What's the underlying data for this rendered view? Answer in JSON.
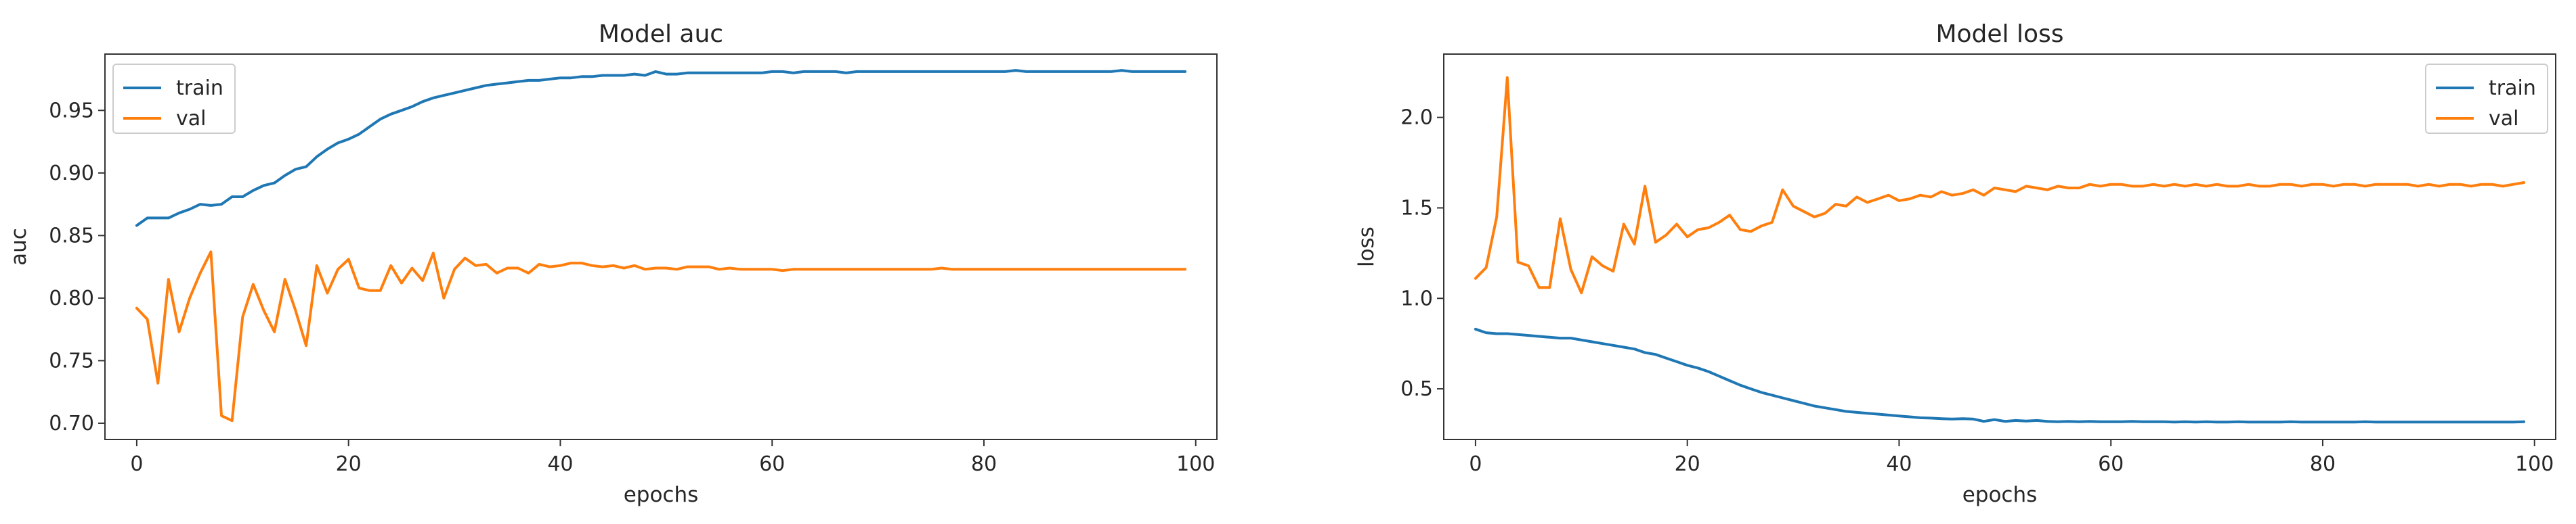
{
  "colors": {
    "train": "#1f77b4",
    "val": "#ff7f0e",
    "axes": "#333333"
  },
  "chart_data": [
    {
      "type": "line",
      "title": "Model auc",
      "xlabel": "epochs",
      "ylabel": "auc",
      "xlim": [
        -3,
        102
      ],
      "ylim": [
        0.687,
        0.995
      ],
      "xticks": [
        0,
        20,
        40,
        60,
        80,
        100
      ],
      "xtick_labels": [
        "0",
        "20",
        "40",
        "60",
        "80",
        "100"
      ],
      "yticks": [
        0.7,
        0.75,
        0.8,
        0.85,
        0.9,
        0.95
      ],
      "ytick_labels": [
        "0.70",
        "0.75",
        "0.80",
        "0.85",
        "0.90",
        "0.95"
      ],
      "legend": "top-left",
      "grid": false,
      "series": [
        {
          "name": "train",
          "values": [
            0.858,
            0.864,
            0.864,
            0.864,
            0.868,
            0.871,
            0.875,
            0.874,
            0.875,
            0.881,
            0.881,
            0.886,
            0.89,
            0.892,
            0.898,
            0.903,
            0.905,
            0.913,
            0.919,
            0.924,
            0.927,
            0.931,
            0.937,
            0.943,
            0.947,
            0.95,
            0.953,
            0.957,
            0.96,
            0.962,
            0.964,
            0.966,
            0.968,
            0.97,
            0.971,
            0.972,
            0.973,
            0.974,
            0.974,
            0.975,
            0.976,
            0.976,
            0.977,
            0.977,
            0.978,
            0.978,
            0.978,
            0.979,
            0.978,
            0.981,
            0.979,
            0.979,
            0.98,
            0.98,
            0.98,
            0.98,
            0.98,
            0.98,
            0.98,
            0.98,
            0.981,
            0.981,
            0.98,
            0.981,
            0.981,
            0.981,
            0.981,
            0.98,
            0.981,
            0.981,
            0.981,
            0.981,
            0.981,
            0.981,
            0.981,
            0.981,
            0.981,
            0.981,
            0.981,
            0.981,
            0.981,
            0.981,
            0.981,
            0.982,
            0.981,
            0.981,
            0.981,
            0.981,
            0.981,
            0.981,
            0.981,
            0.981,
            0.981,
            0.982,
            0.981,
            0.981,
            0.981,
            0.981,
            0.981,
            0.981
          ]
        },
        {
          "name": "val",
          "values": [
            0.792,
            0.783,
            0.732,
            0.815,
            0.773,
            0.8,
            0.82,
            0.837,
            0.706,
            0.702,
            0.785,
            0.811,
            0.79,
            0.773,
            0.815,
            0.79,
            0.762,
            0.826,
            0.804,
            0.823,
            0.831,
            0.808,
            0.806,
            0.806,
            0.826,
            0.812,
            0.824,
            0.814,
            0.836,
            0.8,
            0.823,
            0.832,
            0.826,
            0.827,
            0.82,
            0.824,
            0.824,
            0.82,
            0.827,
            0.825,
            0.826,
            0.828,
            0.828,
            0.826,
            0.825,
            0.826,
            0.824,
            0.826,
            0.823,
            0.824,
            0.824,
            0.823,
            0.825,
            0.825,
            0.825,
            0.823,
            0.824,
            0.823,
            0.823,
            0.823,
            0.823,
            0.822,
            0.823,
            0.823,
            0.823,
            0.823,
            0.823,
            0.823,
            0.823,
            0.823,
            0.823,
            0.823,
            0.823,
            0.823,
            0.823,
            0.823,
            0.824,
            0.823,
            0.823,
            0.823,
            0.823,
            0.823,
            0.823,
            0.823,
            0.823,
            0.823,
            0.823,
            0.823,
            0.823,
            0.823,
            0.823,
            0.823,
            0.823,
            0.823,
            0.823,
            0.823,
            0.823,
            0.823,
            0.823,
            0.823
          ]
        }
      ]
    },
    {
      "type": "line",
      "title": "Model loss",
      "xlabel": "epochs",
      "ylabel": "loss",
      "xlim": [
        -3,
        102
      ],
      "ylim": [
        0.22,
        2.35
      ],
      "xticks": [
        0,
        20,
        40,
        60,
        80,
        100
      ],
      "xtick_labels": [
        "0",
        "20",
        "40",
        "60",
        "80",
        "100"
      ],
      "yticks": [
        0.5,
        1.0,
        1.5,
        2.0
      ],
      "ytick_labels": [
        "0.5",
        "1.0",
        "1.5",
        "2.0"
      ],
      "legend": "top-right",
      "grid": false,
      "series": [
        {
          "name": "train",
          "values": [
            0.83,
            0.81,
            0.805,
            0.805,
            0.8,
            0.795,
            0.79,
            0.785,
            0.78,
            0.78,
            0.77,
            0.76,
            0.75,
            0.74,
            0.73,
            0.72,
            0.7,
            0.69,
            0.67,
            0.65,
            0.63,
            0.615,
            0.595,
            0.57,
            0.545,
            0.52,
            0.5,
            0.48,
            0.465,
            0.45,
            0.435,
            0.42,
            0.405,
            0.395,
            0.385,
            0.375,
            0.37,
            0.365,
            0.36,
            0.355,
            0.35,
            0.345,
            0.34,
            0.338,
            0.335,
            0.333,
            0.335,
            0.333,
            0.32,
            0.33,
            0.32,
            0.325,
            0.322,
            0.325,
            0.32,
            0.318,
            0.32,
            0.318,
            0.32,
            0.318,
            0.318,
            0.318,
            0.32,
            0.318,
            0.318,
            0.318,
            0.316,
            0.318,
            0.316,
            0.318,
            0.316,
            0.316,
            0.318,
            0.316,
            0.316,
            0.316,
            0.316,
            0.318,
            0.316,
            0.316,
            0.316,
            0.316,
            0.316,
            0.316,
            0.318,
            0.316,
            0.316,
            0.316,
            0.316,
            0.316,
            0.316,
            0.316,
            0.316,
            0.316,
            0.316,
            0.316,
            0.316,
            0.316,
            0.316,
            0.318
          ]
        },
        {
          "name": "val",
          "values": [
            1.11,
            1.17,
            1.45,
            2.22,
            1.2,
            1.18,
            1.06,
            1.06,
            1.44,
            1.16,
            1.03,
            1.23,
            1.18,
            1.15,
            1.41,
            1.3,
            1.62,
            1.31,
            1.35,
            1.41,
            1.34,
            1.38,
            1.39,
            1.42,
            1.46,
            1.38,
            1.37,
            1.4,
            1.42,
            1.6,
            1.51,
            1.48,
            1.45,
            1.47,
            1.52,
            1.51,
            1.56,
            1.53,
            1.55,
            1.57,
            1.54,
            1.55,
            1.57,
            1.56,
            1.59,
            1.57,
            1.58,
            1.6,
            1.57,
            1.61,
            1.6,
            1.59,
            1.62,
            1.61,
            1.6,
            1.62,
            1.61,
            1.61,
            1.63,
            1.62,
            1.63,
            1.63,
            1.62,
            1.62,
            1.63,
            1.62,
            1.63,
            1.62,
            1.63,
            1.62,
            1.63,
            1.62,
            1.62,
            1.63,
            1.62,
            1.62,
            1.63,
            1.63,
            1.62,
            1.63,
            1.63,
            1.62,
            1.63,
            1.63,
            1.62,
            1.63,
            1.63,
            1.63,
            1.63,
            1.62,
            1.63,
            1.62,
            1.63,
            1.63,
            1.62,
            1.63,
            1.63,
            1.62,
            1.63,
            1.64
          ]
        }
      ]
    }
  ]
}
